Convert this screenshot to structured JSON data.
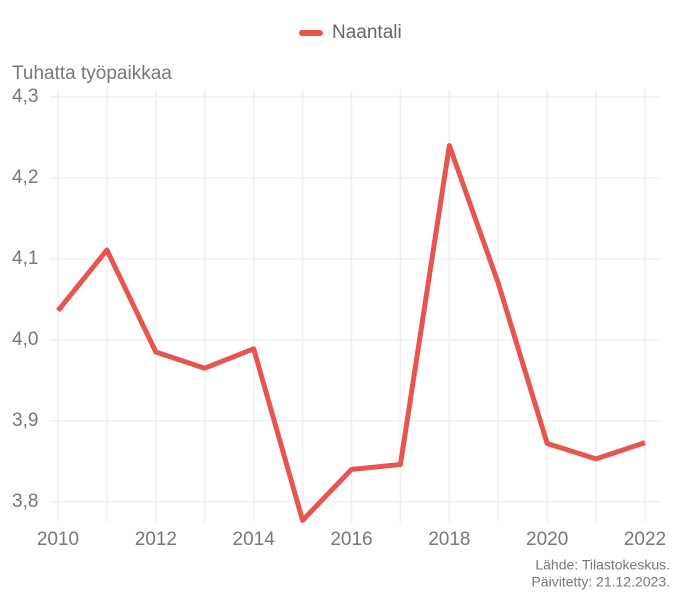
{
  "chart_data": {
    "type": "line",
    "y_axis_label": "Tuhatta työpaikkaa",
    "x": [
      2010,
      2011,
      2012,
      2013,
      2014,
      2015,
      2016,
      2017,
      2018,
      2019,
      2020,
      2021,
      2022
    ],
    "series": [
      {
        "name": "Naantali",
        "color": "#e8554e",
        "values": [
          4.036,
          4.111,
          3.985,
          3.965,
          3.989,
          3.777,
          3.84,
          3.846,
          4.24,
          4.07,
          3.872,
          3.853,
          3.873
        ]
      }
    ],
    "xlim": [
      2010,
      2022
    ],
    "xticks": [
      2010,
      2012,
      2014,
      2016,
      2018,
      2020,
      2022
    ],
    "ylim": [
      3.775,
      4.3
    ],
    "yticks": [
      {
        "value": 3.8,
        "label": "3,8"
      },
      {
        "value": 3.9,
        "label": "3,9"
      },
      {
        "value": 4.0,
        "label": "4,0"
      },
      {
        "value": 4.1,
        "label": "4,1"
      },
      {
        "value": 4.2,
        "label": "4,2"
      },
      {
        "value": 4.3,
        "label": "4,3"
      }
    ],
    "grid": true,
    "legend": "top",
    "source": "Lähde: Tilastokeskus.",
    "updated": "Päivitetty: 21.12.2023."
  }
}
